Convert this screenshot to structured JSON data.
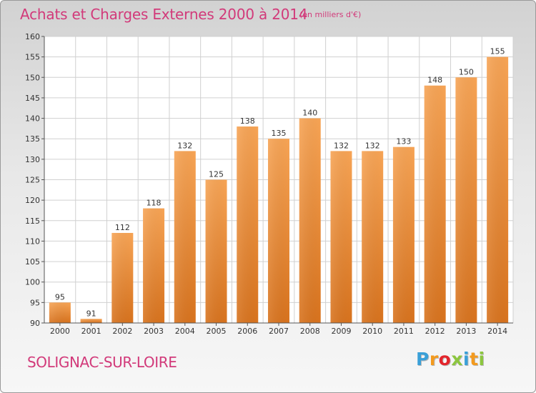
{
  "header": {
    "title": "Achats et Charges Externes 2000 à 2014",
    "subtitle": "(en milliers d'€)"
  },
  "footer": {
    "city": "SOLIGNAC-SUR-LOIRE",
    "logo_letters": [
      "P",
      "r",
      "o",
      "x",
      "i",
      "t",
      "i"
    ],
    "logo_colors": [
      "#3aa0d8",
      "#f39a1e",
      "#e3252c",
      "#8cc63f",
      "#3aa0d8",
      "#f39a1e",
      "#8cc63f"
    ]
  },
  "chart_data": {
    "type": "bar",
    "categories": [
      "2000",
      "2001",
      "2002",
      "2003",
      "2004",
      "2005",
      "2006",
      "2007",
      "2008",
      "2009",
      "2010",
      "2011",
      "2012",
      "2013",
      "2014"
    ],
    "values": [
      95,
      91,
      112,
      118,
      132,
      125,
      138,
      135,
      140,
      132,
      132,
      133,
      148,
      150,
      155
    ],
    "ylim": [
      90,
      160
    ],
    "yticks": [
      90,
      95,
      100,
      105,
      110,
      115,
      120,
      125,
      130,
      135,
      140,
      145,
      150,
      155,
      160
    ],
    "grid": true,
    "bar_color": "#f09a45",
    "bar_color_dark": "#d9731f",
    "grid_color": "#d0d0d0"
  }
}
